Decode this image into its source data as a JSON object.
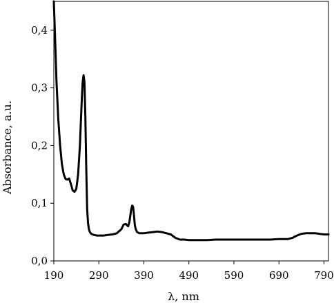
{
  "chart_data": {
    "type": "line",
    "xlabel": "λ, nm",
    "ylabel": "Absorbance, a.u.",
    "xlim": [
      190,
      800
    ],
    "ylim": [
      0,
      0.45
    ],
    "x_ticks": [
      190,
      290,
      390,
      490,
      590,
      690,
      790
    ],
    "x_tick_labels": [
      "190",
      "290",
      "390",
      "490",
      "590",
      "690",
      "790"
    ],
    "y_ticks": [
      0,
      0.1,
      0.2,
      0.3,
      0.4
    ],
    "y_tick_labels": [
      "0,0",
      "0,1",
      "0,2",
      "0,3",
      "0,4"
    ],
    "grid": false,
    "line_color": "#000000",
    "series": [
      {
        "x": [
          190,
          193,
          196,
          200,
          204,
          208,
          212,
          216,
          220,
          224,
          228,
          232,
          236,
          240,
          244,
          248,
          252,
          254,
          256,
          258,
          260,
          262,
          264,
          266,
          268,
          270,
          273,
          276,
          280,
          285,
          290,
          300,
          310,
          320,
          330,
          340,
          345,
          350,
          355,
          358,
          362,
          364,
          366,
          368,
          370,
          372,
          375,
          380,
          390,
          400,
          410,
          420,
          430,
          440,
          450,
          460,
          470,
          480,
          490,
          510,
          530,
          550,
          570,
          590,
          610,
          630,
          650,
          670,
          690,
          700,
          710,
          720,
          730,
          740,
          750,
          760,
          770,
          780,
          790,
          800
        ],
        "y": [
          0.45,
          0.38,
          0.31,
          0.245,
          0.2,
          0.168,
          0.15,
          0.142,
          0.141,
          0.143,
          0.133,
          0.122,
          0.12,
          0.125,
          0.15,
          0.2,
          0.28,
          0.31,
          0.322,
          0.31,
          0.25,
          0.16,
          0.09,
          0.065,
          0.055,
          0.05,
          0.047,
          0.046,
          0.045,
          0.044,
          0.044,
          0.044,
          0.045,
          0.046,
          0.048,
          0.055,
          0.063,
          0.064,
          0.06,
          0.068,
          0.09,
          0.096,
          0.094,
          0.08,
          0.062,
          0.055,
          0.05,
          0.048,
          0.048,
          0.049,
          0.05,
          0.051,
          0.05,
          0.048,
          0.046,
          0.04,
          0.037,
          0.037,
          0.036,
          0.036,
          0.036,
          0.037,
          0.037,
          0.037,
          0.037,
          0.037,
          0.037,
          0.037,
          0.038,
          0.038,
          0.038,
          0.04,
          0.044,
          0.047,
          0.048,
          0.048,
          0.048,
          0.047,
          0.046,
          0.046
        ]
      }
    ]
  }
}
